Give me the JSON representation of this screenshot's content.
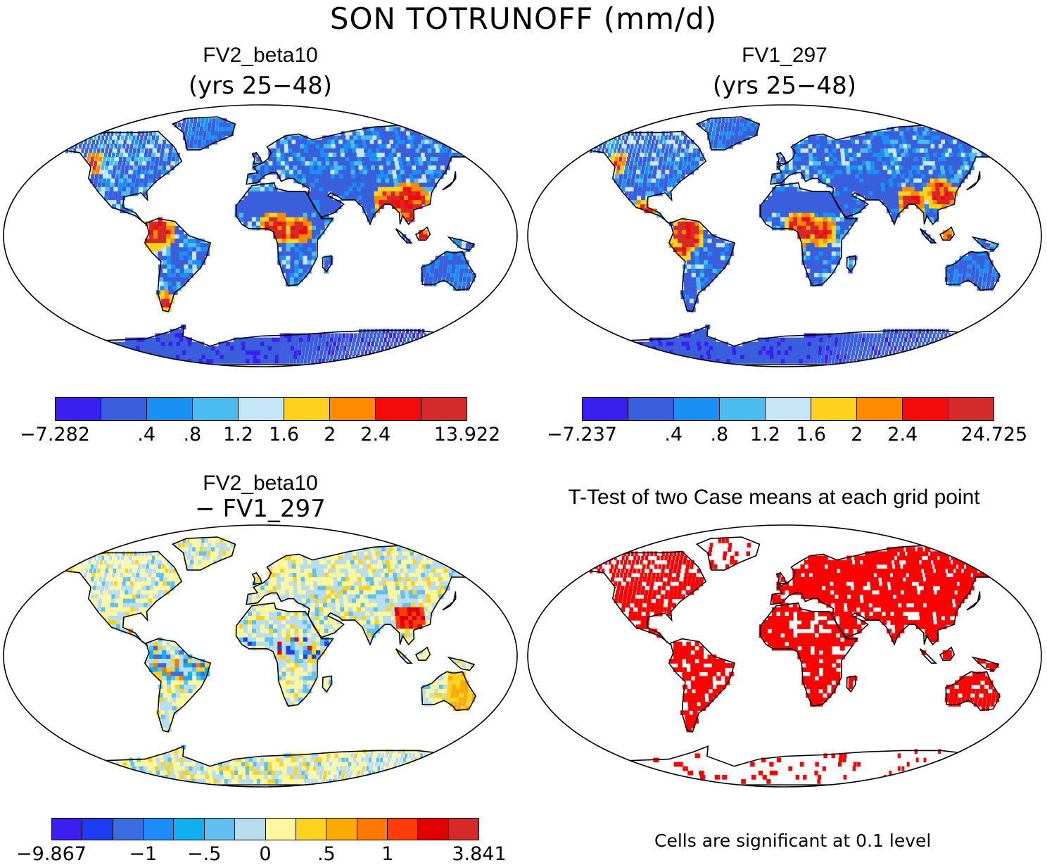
{
  "title": "SON TOTRUNOFF (mm/d)",
  "panels": [
    {
      "id": "p1",
      "title": "FV2_beta10",
      "subtitle": "(yrs 25−48)",
      "type": "field"
    },
    {
      "id": "p2",
      "title": "FV1_297",
      "subtitle": "(yrs 25−48)",
      "type": "field"
    },
    {
      "id": "p3",
      "title": "FV2_beta10",
      "subtitle": "− FV1_297",
      "type": "diff"
    },
    {
      "id": "p4",
      "title": "T-Test of two Case means at each grid point",
      "subtitle": "",
      "type": "ttest"
    }
  ],
  "colorbars": [
    {
      "id": "cb1",
      "colors": [
        "#3b1ff0",
        "#3a5fdc",
        "#1a90f5",
        "#4bbcf0",
        "#c6e6f7",
        "#ffd21e",
        "#ff8a00",
        "#f40a0a",
        "#d52a2a"
      ],
      "labels": [
        "−7.282",
        ".4",
        ".8",
        "1.2",
        "1.6",
        "2",
        "2.4",
        "13.922"
      ],
      "label_edges": [
        0,
        2,
        3,
        4,
        5,
        6,
        7,
        9
      ]
    },
    {
      "id": "cb2",
      "colors": [
        "#3b1ff0",
        "#3a5fdc",
        "#1a90f5",
        "#4bbcf0",
        "#c6e6f7",
        "#ffd21e",
        "#ff8a00",
        "#f40a0a",
        "#d52a2a"
      ],
      "labels": [
        "−7.237",
        ".4",
        ".8",
        "1.2",
        "1.6",
        "2",
        "2.4",
        "24.725"
      ],
      "label_edges": [
        0,
        2,
        3,
        4,
        5,
        6,
        7,
        9
      ]
    },
    {
      "id": "cb3",
      "colors": [
        "#3b1ff0",
        "#1e3cf0",
        "#3a6ee0",
        "#1e8cff",
        "#10b0f0",
        "#60c0f0",
        "#b8dcf0",
        "#fff6a0",
        "#ffd21e",
        "#ffaa00",
        "#ff7800",
        "#ff3c0a",
        "#e00000",
        "#d52a2a"
      ],
      "labels": [
        "−9.867",
        "−1",
        "−.5",
        "0",
        ".5",
        "1",
        "3.841"
      ],
      "label_edges": [
        0,
        3,
        5,
        7,
        9,
        11,
        14
      ]
    }
  ],
  "note": "Cells are significant at 0.1 level"
}
